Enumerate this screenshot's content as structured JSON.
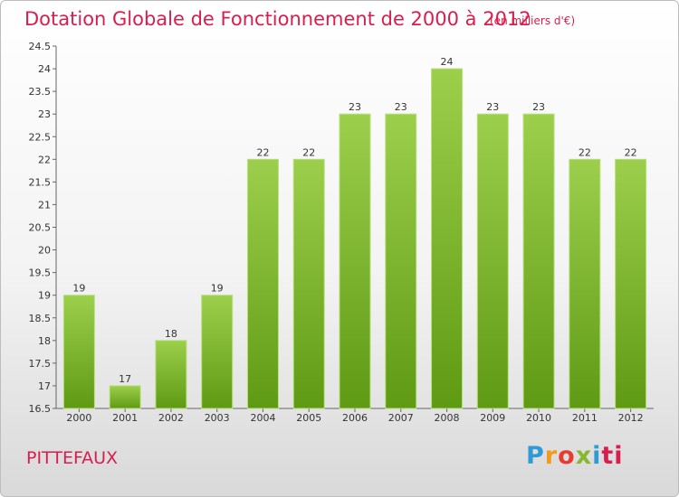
{
  "chart_data": {
    "type": "bar",
    "title": "Dotation Globale de Fonctionnement de 2000 à 2012",
    "subtitle": "(en milliers d'€)",
    "categories": [
      "2000",
      "2001",
      "2002",
      "2003",
      "2004",
      "2005",
      "2006",
      "2007",
      "2008",
      "2009",
      "2010",
      "2011",
      "2012"
    ],
    "values": [
      19,
      17,
      18,
      19,
      22,
      22,
      23,
      23,
      24,
      23,
      23,
      22,
      22
    ],
    "data_labels": [
      "19",
      "17",
      "18",
      "19",
      "22",
      "22",
      "23",
      "23",
      "24",
      "23",
      "23",
      "22",
      "22"
    ],
    "ylim": [
      16.5,
      24.5
    ],
    "yticks": [
      16.5,
      17,
      17.5,
      18,
      18.5,
      19,
      19.5,
      20,
      20.5,
      21,
      21.5,
      22,
      22.5,
      23,
      23.5,
      24,
      24.5
    ],
    "ytick_labels": [
      "16.5",
      "17",
      "17.5",
      "18",
      "18.5",
      "19",
      "19.5",
      "20",
      "20.5",
      "21",
      "21.5",
      "22",
      "22.5",
      "23",
      "23.5",
      "24",
      "24.5"
    ],
    "grid": false,
    "colors": {
      "bar_top": "#9ccf4c",
      "bar_bottom": "#5f9a14",
      "bar_edge": "#b8e07a"
    }
  },
  "footer": {
    "city": "PITTEFAUX",
    "logo_letters": [
      "P",
      "r",
      "o",
      "x",
      "i",
      "ti"
    ]
  }
}
